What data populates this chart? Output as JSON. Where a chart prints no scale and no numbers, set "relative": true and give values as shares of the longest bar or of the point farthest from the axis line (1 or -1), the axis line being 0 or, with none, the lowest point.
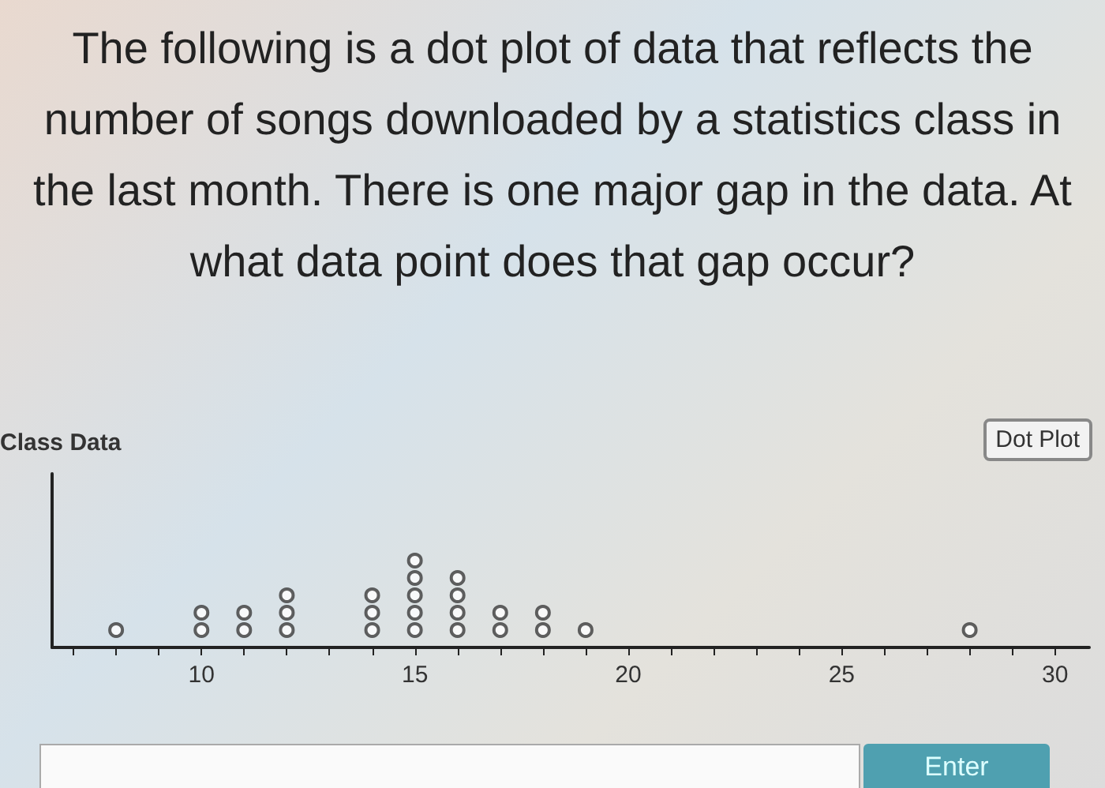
{
  "chart_data": {
    "type": "scatter",
    "title": "The following is a dot plot of data that reflects the number of songs downloaded by a statistics class in the last month. There is one major gap in the data. At what data point does that gap occur?",
    "subtitle": "Class Data",
    "annotations": [
      "Dot Plot",
      "Enter"
    ],
    "x": [
      8,
      10,
      10,
      11,
      11,
      12,
      12,
      12,
      14,
      14,
      14,
      15,
      15,
      15,
      15,
      15,
      16,
      16,
      16,
      16,
      17,
      17,
      18,
      18,
      19,
      28
    ],
    "values": [
      0.2,
      0.2,
      0.4,
      0.2,
      0.4,
      0.2,
      0.4,
      0.6,
      0.2,
      0.4,
      0.6,
      0.2,
      0.4,
      0.6,
      0.8,
      1,
      0.2,
      0.4,
      0.6,
      0.8,
      0.2,
      0.4,
      0.2,
      0.4,
      0.2,
      0.2
    ],
    "relative": true,
    "color": "#3a3a3a",
    "marker": "circle",
    "xlim": [
      6.5,
      30.8
    ],
    "xticks": [
      {
        "value": 7,
        "label": null
      },
      {
        "value": 8,
        "label": null
      },
      {
        "value": 9,
        "label": null
      },
      10,
      {
        "value": 11,
        "label": null
      },
      {
        "value": 12,
        "label": null
      },
      {
        "value": 13,
        "label": null
      },
      {
        "value": 14,
        "label": null
      },
      15,
      {
        "value": 16,
        "label": null
      },
      {
        "value": 17,
        "label": null
      },
      {
        "value": 18,
        "label": null
      },
      {
        "value": 19,
        "label": null
      },
      20,
      {
        "value": 21,
        "label": null
      },
      {
        "value": 22,
        "label": null
      },
      {
        "value": 23,
        "label": null
      },
      {
        "value": 24,
        "label": null
      },
      25,
      {
        "value": 26,
        "label": null
      },
      {
        "value": 27,
        "label": null
      },
      {
        "value": 28,
        "label": null
      },
      {
        "value": 29,
        "label": null
      },
      30
    ],
    "tick_labels": "x",
    "grid": false
  }
}
